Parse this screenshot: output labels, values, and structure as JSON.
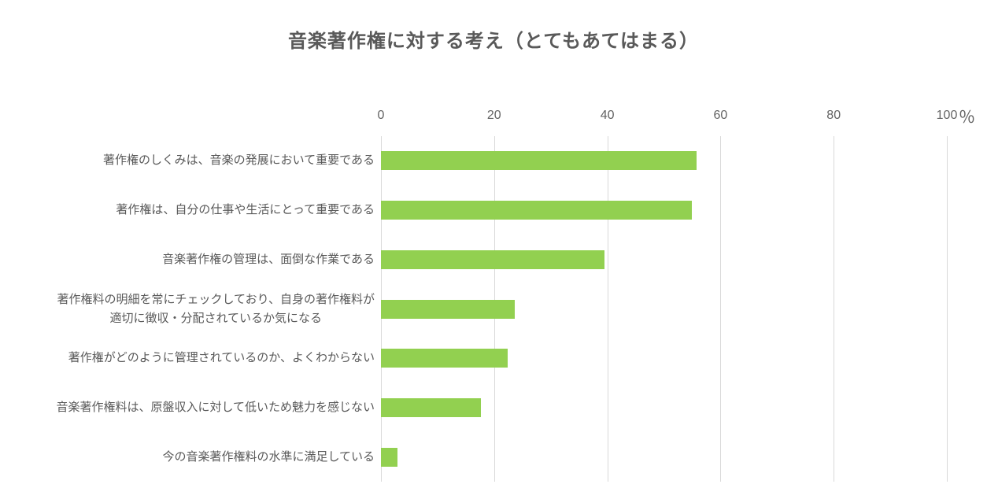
{
  "chart_data": {
    "type": "bar",
    "orientation": "horizontal",
    "title": "音楽著作権に対する考え（とてもあてはまる）",
    "categories": [
      "著作権のしくみは、音楽の発展において重要である",
      "著作権は、自分の仕事や生活にとって重要である",
      "音楽著作権の管理は、面倒な作業である",
      "著作権料の明細を常にチェックしており、自身の著作権料が\n適切に徴収・分配されているか気になる",
      "著作権がどのように管理されているのか、よくわからない",
      "音楽著作権料は、原盤収入に対して低いため魅力を感じない",
      "今の音楽著作権料の水準に満足している"
    ],
    "values": [
      55.8,
      54.9,
      39.5,
      23.6,
      22.4,
      17.6,
      2.9
    ],
    "xlabel": "",
    "ylabel": "",
    "xlim": [
      0,
      100
    ],
    "x_ticks": [
      0,
      20,
      40,
      60,
      80,
      100
    ],
    "unit": "％",
    "legend": "none",
    "grid": "vertical",
    "colors": {
      "bar": "#92D050",
      "gridline": "#D9D9D9",
      "title_text": "#595959",
      "label_text": "#595959",
      "tick_text": "#636363"
    }
  }
}
